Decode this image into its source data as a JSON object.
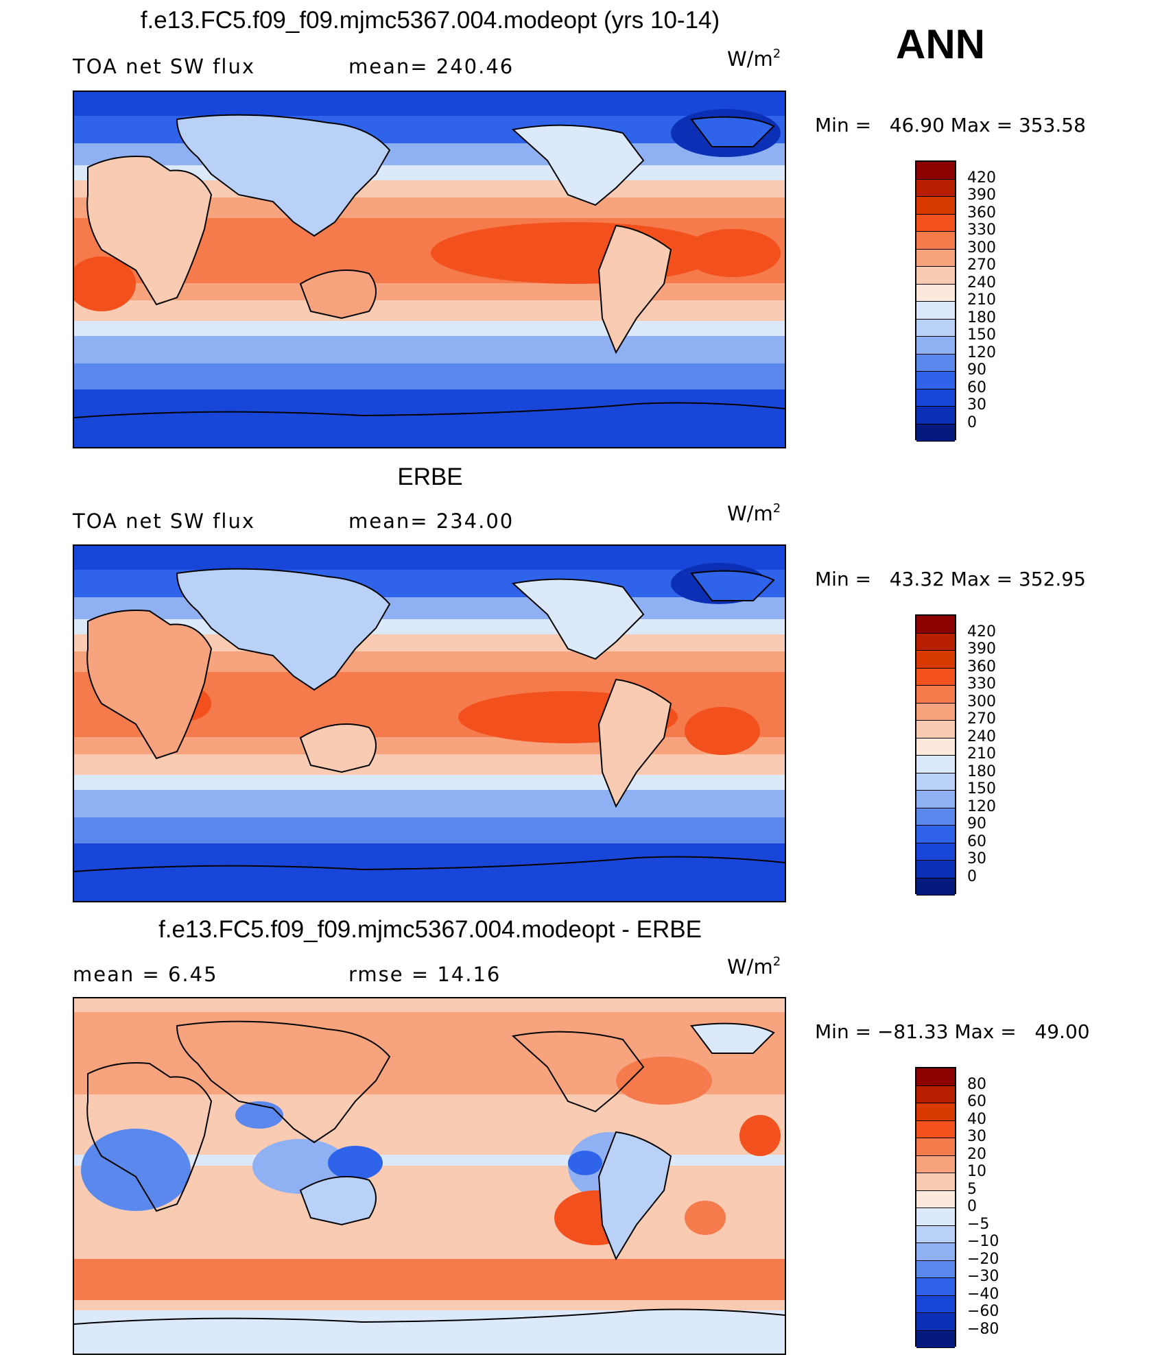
{
  "season": "ANN",
  "units": {
    "base": "W/m",
    "exp": "2"
  },
  "panels": [
    {
      "title": "f.e13.FC5.f09_f09.mjmc5367.004.modeopt (yrs 10-14)",
      "left_label": "TOA net SW flux",
      "center_label": "mean= 240.46",
      "minmax": "Min =   46.90 Max = 353.58",
      "colorbar": {
        "labels": [
          "420",
          "390",
          "360",
          "330",
          "300",
          "270",
          "240",
          "210",
          "180",
          "150",
          "120",
          "90",
          "60",
          "30",
          "0"
        ],
        "colors": [
          "#8c0000",
          "#b81f00",
          "#d93a00",
          "#f2501c",
          "#f57a4c",
          "#f7a37e",
          "#facbb3",
          "#fde9dc",
          "#dce9fb",
          "#b9d0f7",
          "#8fb0f2",
          "#5b88ed",
          "#2f63ea",
          "#1846d8",
          "#0b2fb5",
          "#051a7e"
        ]
      }
    },
    {
      "title": "ERBE",
      "left_label": "TOA net SW flux",
      "center_label": "mean= 234.00",
      "minmax": "Min =   43.32 Max = 352.95",
      "colorbar": {
        "labels": [
          "420",
          "390",
          "360",
          "330",
          "300",
          "270",
          "240",
          "210",
          "180",
          "150",
          "120",
          "90",
          "60",
          "30",
          "0"
        ],
        "colors": [
          "#8c0000",
          "#b81f00",
          "#d93a00",
          "#f2501c",
          "#f57a4c",
          "#f7a37e",
          "#facbb3",
          "#fde9dc",
          "#dce9fb",
          "#b9d0f7",
          "#8fb0f2",
          "#5b88ed",
          "#2f63ea",
          "#1846d8",
          "#0b2fb5",
          "#051a7e"
        ]
      }
    },
    {
      "title": "f.e13.FC5.f09_f09.mjmc5367.004.modeopt - ERBE",
      "left_label": "mean =    6.45",
      "center_label": "rmse =   14.16",
      "minmax": "Min = −81.33 Max =   49.00",
      "colorbar": {
        "labels": [
          "80",
          "60",
          "40",
          "30",
          "20",
          "10",
          "5",
          "0",
          "−5",
          "−10",
          "−20",
          "−30",
          "−40",
          "−60",
          "−80"
        ],
        "colors": [
          "#8c0000",
          "#b81f00",
          "#d93a00",
          "#f2501c",
          "#f57a4c",
          "#f7a37e",
          "#facbb3",
          "#fde9dc",
          "#dce9fb",
          "#b9d0f7",
          "#8fb0f2",
          "#5b88ed",
          "#2f63ea",
          "#1846d8",
          "#0b2fb5",
          "#051a7e"
        ]
      }
    }
  ]
}
